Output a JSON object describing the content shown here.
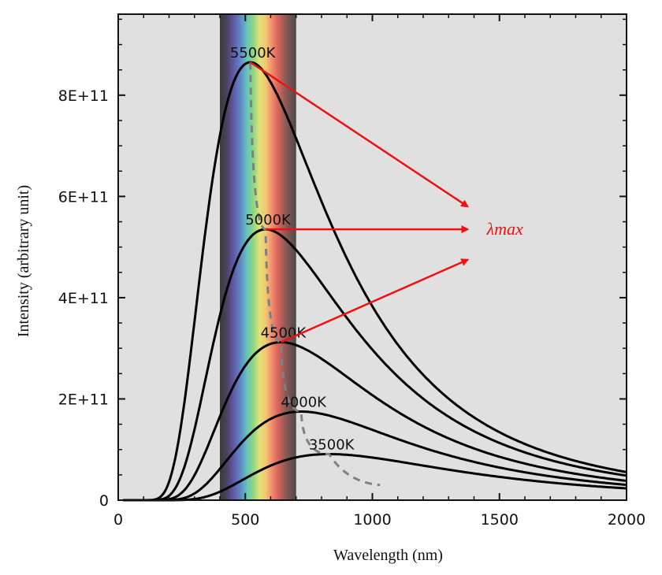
{
  "chart_data": {
    "type": "line",
    "title": "",
    "xlabel": "Wavelength (nm)",
    "ylabel": "Intensity (arbitrary unit)",
    "xlim": [
      0,
      2000
    ],
    "ylim": [
      0,
      960000000000.0
    ],
    "x_ticks": [
      0,
      500,
      1000,
      1500,
      2000
    ],
    "x_tick_labels": [
      "0",
      "500",
      "1000",
      "1500",
      "2000"
    ],
    "y_ticks": [
      0,
      200000000000.0,
      400000000000.0,
      600000000000.0,
      800000000000.0
    ],
    "y_tick_labels": [
      "0",
      "2E+11",
      "4E+11",
      "6E+11",
      "8E+11"
    ],
    "grid": false,
    "legend": "none",
    "background_color": "#e0e0e0",
    "visible_spectrum_band": {
      "from": 400,
      "to": 700
    },
    "series": [
      {
        "name": "5500K",
        "peak_x": 520,
        "peak_y": 865000000000.0,
        "color": "#000000"
      },
      {
        "name": "5000K",
        "peak_x": 580,
        "peak_y": 535000000000.0,
        "color": "#000000"
      },
      {
        "name": "4500K",
        "peak_x": 640,
        "peak_y": 312000000000.0,
        "color": "#000000"
      },
      {
        "name": "4000K",
        "peak_x": 720,
        "peak_y": 175000000000.0,
        "color": "#000000"
      },
      {
        "name": "3500K",
        "peak_x": 830,
        "peak_y": 91000000000.0,
        "color": "#000000"
      }
    ],
    "peak_locus": {
      "style": "dashed",
      "color": "#808080",
      "end_x": 1030,
      "end_y": 30000000000.0
    },
    "annotation": {
      "label": "λmax",
      "color": "#ee1111",
      "arrows": [
        {
          "from": [
            520,
            865000000000.0
          ],
          "to": [
            1375,
            580000000000.0
          ]
        },
        {
          "from": [
            580,
            535000000000.0
          ],
          "to": [
            1375,
            535000000000.0
          ]
        },
        {
          "from": [
            640,
            312000000000.0
          ],
          "to": [
            1375,
            475000000000.0
          ]
        }
      ],
      "label_at": [
        1450,
        535000000000.0
      ]
    }
  }
}
